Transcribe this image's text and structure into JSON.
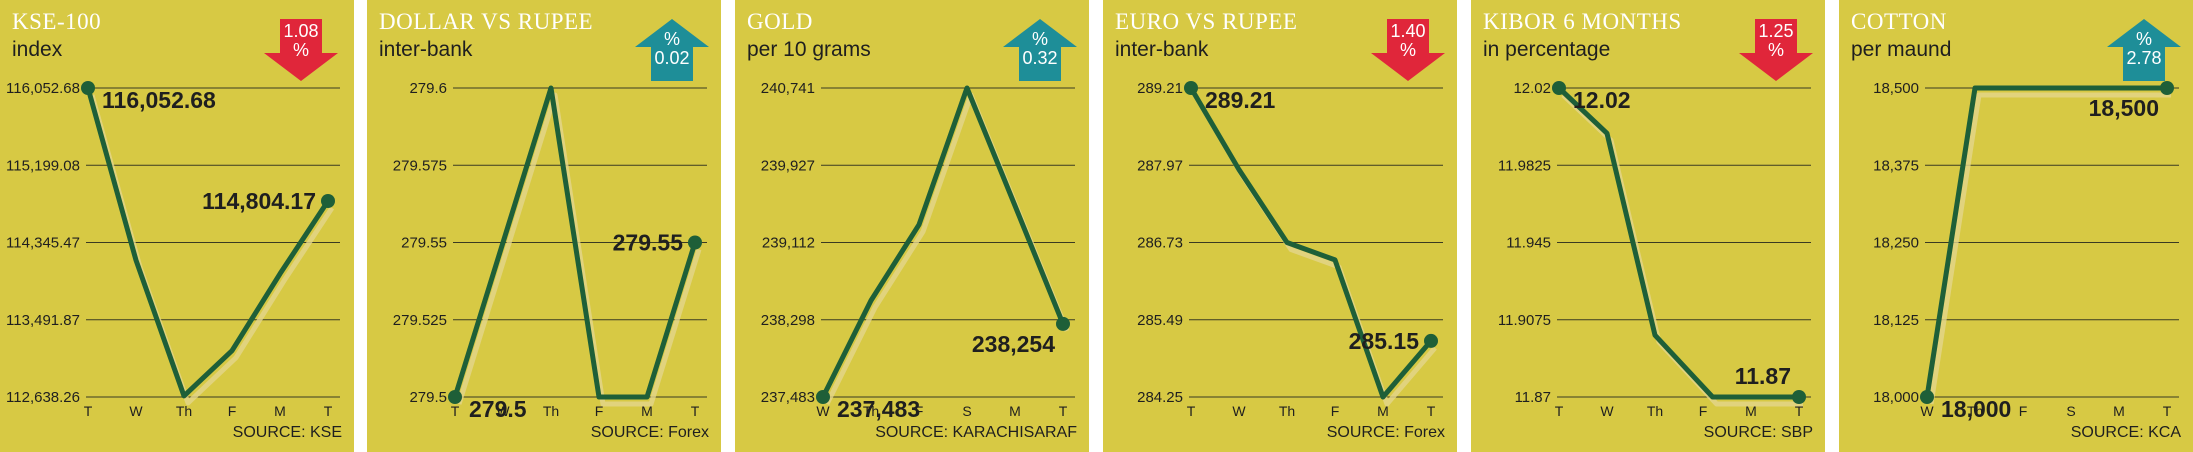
{
  "colors": {
    "panel_bg": "#d7c944",
    "line": "#1e5f38",
    "grid": "#3a3a22",
    "down_badge": "#e0263a",
    "up_badge": "#1e8e98",
    "title_text": "#ffffff"
  },
  "chart_data": [
    {
      "type": "line",
      "title": "KSE-100",
      "subtitle": "index",
      "source": "SOURCE: KSE",
      "change": {
        "direction": "down",
        "value": "1.08",
        "unit": "%"
      },
      "categories": [
        "T",
        "W",
        "Th",
        "F",
        "M",
        "T"
      ],
      "values": [
        116052.68,
        114150,
        112650,
        113150,
        114000,
        114804.17
      ],
      "y_ticks": [
        "116,052.68",
        "115,199.08",
        "114,345.47",
        "113,491.87",
        "112,638.26"
      ],
      "ylim": [
        112638.26,
        116052.68
      ],
      "labels": [
        {
          "index": 0,
          "text": "116,052.68",
          "pos": "right"
        },
        {
          "index": 5,
          "text": "114,804.17",
          "pos": "left"
        }
      ],
      "markers": [
        0,
        5
      ],
      "grid": true
    },
    {
      "type": "line",
      "title": "DOLLAR VS RUPEE",
      "subtitle": "inter-bank",
      "source": "SOURCE: Forex",
      "change": {
        "direction": "up",
        "value": "0.02",
        "unit": "%"
      },
      "categories": [
        "T",
        "W",
        "Th",
        "F",
        "M",
        "T"
      ],
      "values": [
        279.5,
        279.55,
        279.6,
        279.5,
        279.5,
        279.55
      ],
      "y_ticks": [
        "279.6",
        "279.575",
        "279.55",
        "279.525",
        "279.5"
      ],
      "ylim": [
        279.5,
        279.6
      ],
      "labels": [
        {
          "index": 0,
          "text": "279.5",
          "pos": "right"
        },
        {
          "index": 5,
          "text": "279.55",
          "pos": "left"
        }
      ],
      "markers": [
        0,
        5
      ],
      "grid": true
    },
    {
      "type": "line",
      "title": "GOLD",
      "subtitle": "per 10 grams",
      "source": "SOURCE: KARACHISARAF",
      "change": {
        "direction": "up",
        "value": "0.32",
        "unit": "%"
      },
      "categories": [
        "W",
        "Th",
        "F",
        "S",
        "M",
        "T"
      ],
      "values": [
        237483,
        238500,
        239300,
        240741,
        239500,
        238254
      ],
      "y_ticks": [
        "240,741",
        "239,927",
        "239,112",
        "238,298",
        "237,483"
      ],
      "ylim": [
        237483,
        240741
      ],
      "labels": [
        {
          "index": 0,
          "text": "237,483",
          "pos": "right"
        },
        {
          "index": 5,
          "text": "238,254",
          "pos": "left-below"
        }
      ],
      "markers": [
        0,
        5
      ],
      "grid": true
    },
    {
      "type": "line",
      "title": "EURO VS RUPEE",
      "subtitle": "inter-bank",
      "source": "SOURCE: Forex",
      "change": {
        "direction": "down",
        "value": "1.40",
        "unit": "%"
      },
      "categories": [
        "T",
        "W",
        "Th",
        "F",
        "M",
        "T"
      ],
      "values": [
        289.21,
        287.9,
        286.73,
        286.45,
        284.25,
        285.15
      ],
      "y_ticks": [
        "289.21",
        "287.97",
        "286.73",
        "285.49",
        "284.25"
      ],
      "ylim": [
        284.25,
        289.21
      ],
      "labels": [
        {
          "index": 0,
          "text": "289.21",
          "pos": "right"
        },
        {
          "index": 5,
          "text": "285.15",
          "pos": "left"
        }
      ],
      "markers": [
        0,
        5
      ],
      "grid": true
    },
    {
      "type": "line",
      "title": "KIBOR 6 MONTHS",
      "subtitle": "in percentage",
      "source": "SOURCE: SBP",
      "change": {
        "direction": "down",
        "value": "1.25",
        "unit": "%"
      },
      "categories": [
        "T",
        "W",
        "Th",
        "F",
        "M",
        "T"
      ],
      "values": [
        12.02,
        11.998,
        11.9,
        11.87,
        11.87,
        11.87
      ],
      "y_ticks": [
        "12.02",
        "11.9825",
        "11.945",
        "11.9075",
        "11.87"
      ],
      "ylim": [
        11.87,
        12.02
      ],
      "x_positions": [
        0,
        1,
        2,
        3.2,
        4,
        5
      ],
      "labels": [
        {
          "index": 0,
          "text": "12.02",
          "pos": "right"
        },
        {
          "index": 5,
          "text": "11.87",
          "pos": "left-above"
        }
      ],
      "markers": [
        0,
        5
      ],
      "grid": true
    },
    {
      "type": "line",
      "title": "COTTON",
      "subtitle": "per maund",
      "source": "SOURCE: KCA",
      "change": {
        "direction": "up",
        "value": "2.78",
        "unit": "%"
      },
      "categories": [
        "W",
        "Th",
        "F",
        "S",
        "M",
        "T"
      ],
      "values": [
        18000,
        18500,
        18500,
        18500,
        18500,
        18500
      ],
      "y_ticks": [
        "18,500",
        "18,375",
        "18,250",
        "18,125",
        "18,000"
      ],
      "ylim": [
        18000,
        18500
      ],
      "labels": [
        {
          "index": 0,
          "text": "18,000",
          "pos": "right"
        },
        {
          "index": 5,
          "text": "18,500",
          "pos": "left-below"
        }
      ],
      "markers": [
        0,
        5
      ],
      "grid": true
    }
  ]
}
